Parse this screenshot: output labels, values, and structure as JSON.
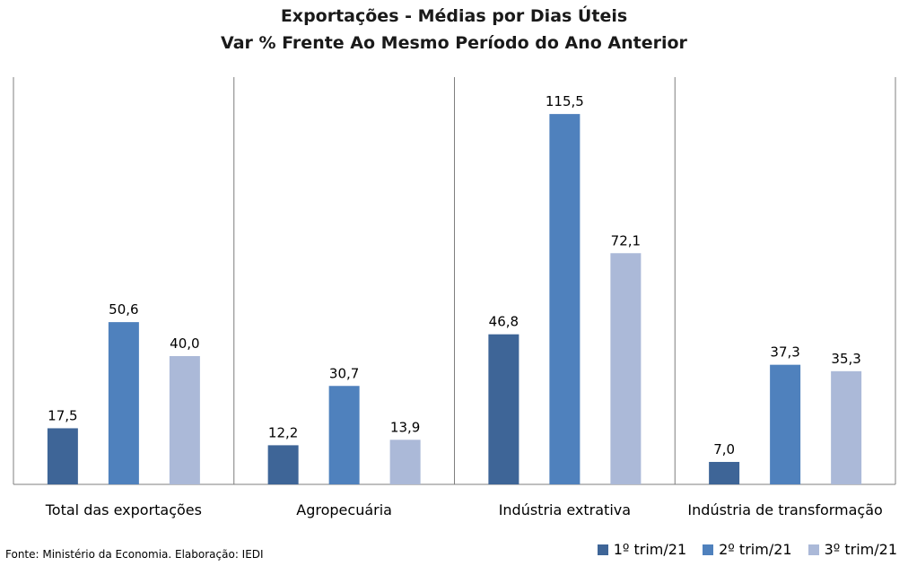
{
  "chart_data": {
    "type": "bar",
    "title": "Exportações - Médias por Dias Úteis",
    "subtitle": "Var % Frente Ao Mesmo Período do Ano Anterior",
    "categories": [
      "Total das exportações",
      "Agropecuária",
      "Indústria extrativa",
      "Indústria de transformação"
    ],
    "series": [
      {
        "name": "1º trim/21",
        "color": "#3e6597",
        "values": [
          17.5,
          12.2,
          46.8,
          7.0
        ],
        "labels": [
          "17,5",
          "12,2",
          "46,8",
          "7,0"
        ]
      },
      {
        "name": "2º trim/21",
        "color": "#4f81bd",
        "values": [
          50.6,
          30.7,
          115.5,
          37.3
        ],
        "labels": [
          "50,6",
          "30,7",
          "115,5",
          "37,3"
        ]
      },
      {
        "name": "3º trim/21",
        "color": "#abb9d8",
        "values": [
          40.0,
          13.9,
          72.1,
          35.3
        ],
        "labels": [
          "40,0",
          "13,9",
          "72,1",
          "35,3"
        ]
      }
    ],
    "ylim": [
      0,
      127
    ],
    "legend_position": "bottom-right",
    "grid": false
  },
  "footer": {
    "source": "Fonte: Ministério da Economia. Elaboração: IEDI"
  }
}
